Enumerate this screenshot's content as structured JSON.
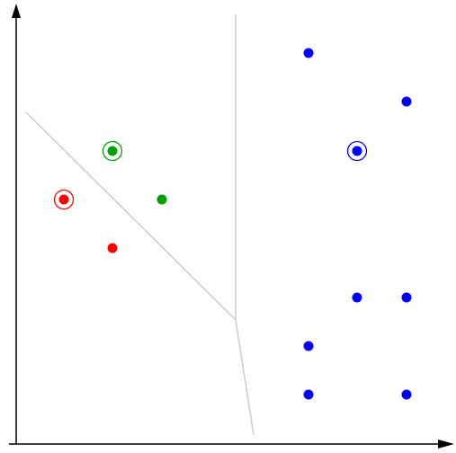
{
  "colors": {
    "red": "#ff0000",
    "green": "#00a000",
    "blue": "#0000ff",
    "boundary": "#cccccc",
    "axis": "#000000"
  },
  "points": [
    {
      "color": "red",
      "circled": true
    },
    {
      "color": "red",
      "circled": false
    },
    {
      "color": "green",
      "circled": true
    },
    {
      "color": "green",
      "circled": false
    },
    {
      "color": "blue",
      "circled": true
    },
    {
      "color": "blue",
      "circled": false
    },
    {
      "color": "blue",
      "circled": false
    },
    {
      "color": "blue",
      "circled": false
    },
    {
      "color": "blue",
      "circled": false
    },
    {
      "color": "blue",
      "circled": false
    },
    {
      "color": "blue",
      "circled": false
    },
    {
      "color": "blue",
      "circled": false
    }
  ]
}
